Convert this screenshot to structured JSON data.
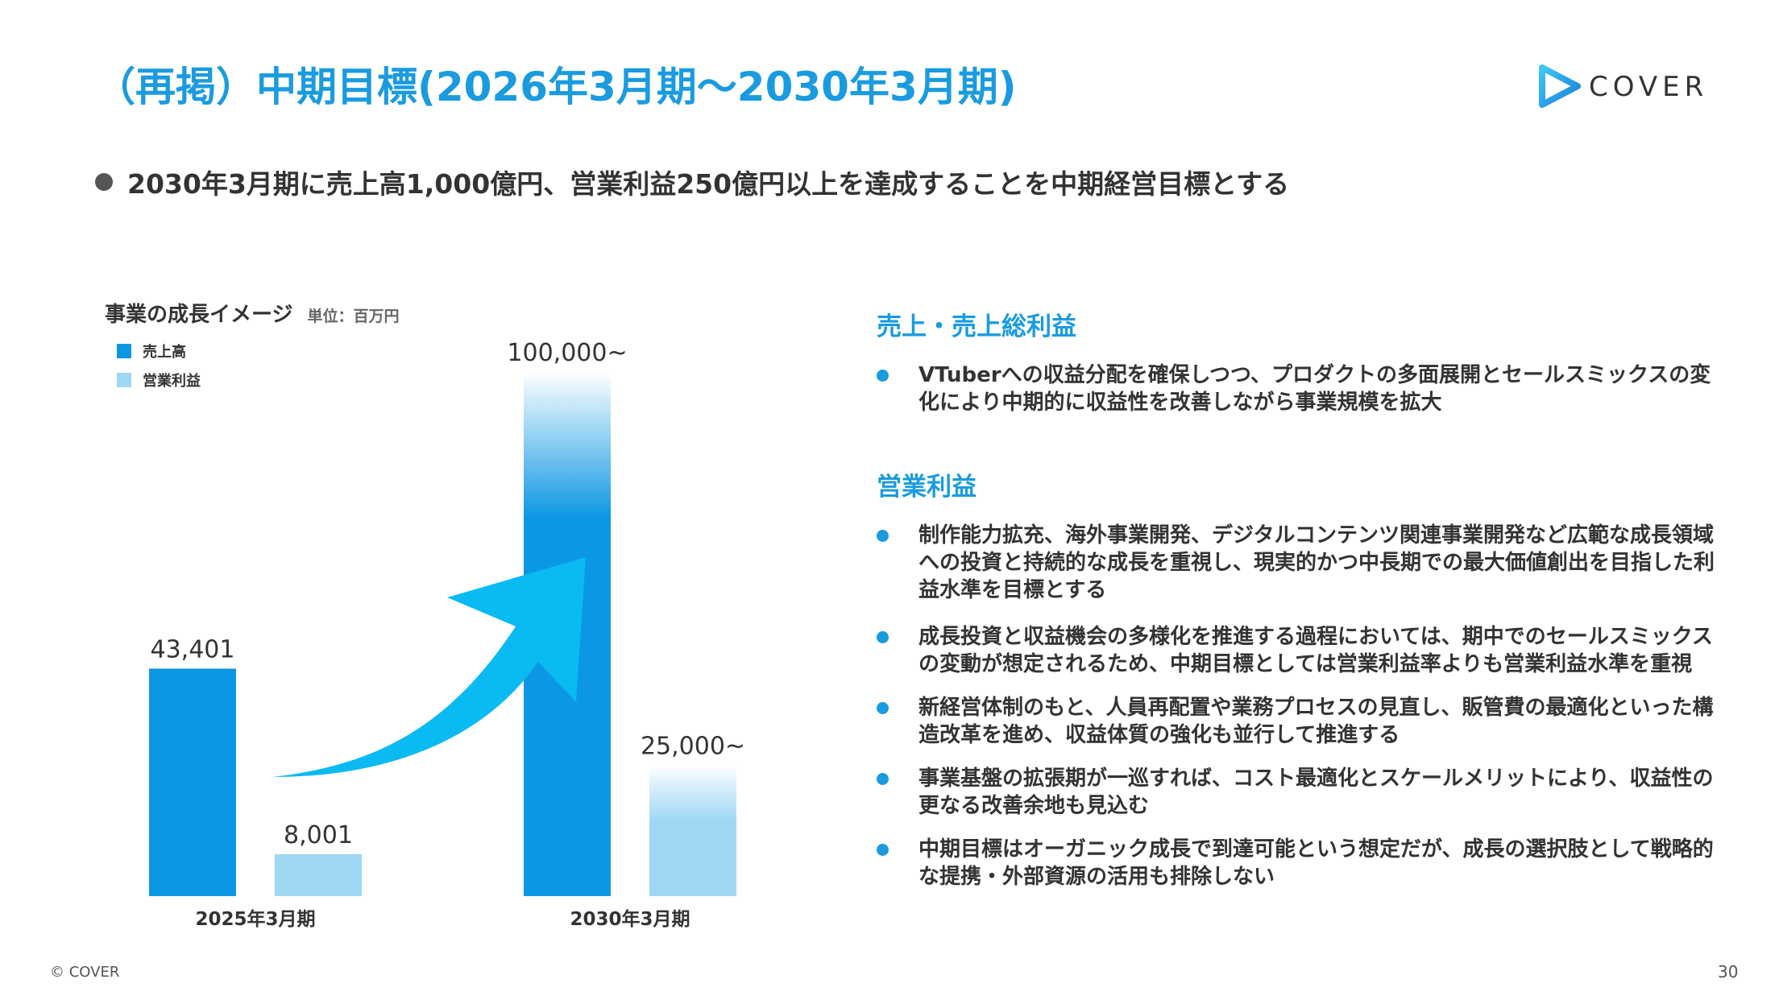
{
  "header": {
    "title": "（再掲）中期目標(2026年3月期～2030年3月期)",
    "logo_text": "COVER"
  },
  "lead": "2030年3月期に売上高1,000億円、営業利益250億円以上を達成することを中期経営目標とする",
  "chart_data": {
    "type": "bar",
    "title": "事業の成長イメージ",
    "unit": "単位：百万円",
    "categories": [
      "2025年3月期",
      "2030年3月期"
    ],
    "series": [
      {
        "name": "売上高",
        "values": [
          43401,
          100000
        ],
        "labels": [
          "43,401",
          "100,000~"
        ],
        "color": "#0b97e3"
      },
      {
        "name": "営業利益",
        "values": [
          8001,
          25000
        ],
        "labels": [
          "8,001",
          "25,000~"
        ],
        "color": "#9fd7f5"
      }
    ],
    "ylim": [
      0,
      100000
    ],
    "grid": false,
    "legend_position": "top-left"
  },
  "right": {
    "sections": [
      {
        "heading": "売上・売上総利益",
        "bullets": [
          "VTuberへの収益分配を確保しつつ、プロダクトの多面展開とセールスミックスの変化により中期的に収益性を改善しながら事業規模を拡大"
        ]
      },
      {
        "heading": "営業利益",
        "bullets": [
          "制作能力拡充、海外事業開発、デジタルコンテンツ関連事業開発など広範な成長領域への投資と持続的な成長を重視し、現実的かつ中長期での最大価値創出を目指した利益水準を目標とする",
          "成長投資と収益機会の多様化を推進する過程においては、期中でのセールスミックスの変動が想定されるため、中期目標としては営業利益率よりも営業利益水準を重視",
          "新経営体制のもと、人員再配置や業務プロセスの見直し、販管費の最適化といった構造改革を進め、収益体質の強化も並行して推進する",
          "事業基盤の拡張期が一巡すれば、コスト最適化とスケールメリットにより、収益性の更なる改善余地も見込む",
          "中期目標はオーガニック成長で到達可能という想定だが、成長の選択肢として戦略的な提携・外部資源の活用も排除しない"
        ]
      }
    ]
  },
  "footer": {
    "copyright": "© COVER",
    "page_number": "30"
  },
  "colors": {
    "accent": "#1a9be0",
    "arrow": "#0abaf2"
  }
}
